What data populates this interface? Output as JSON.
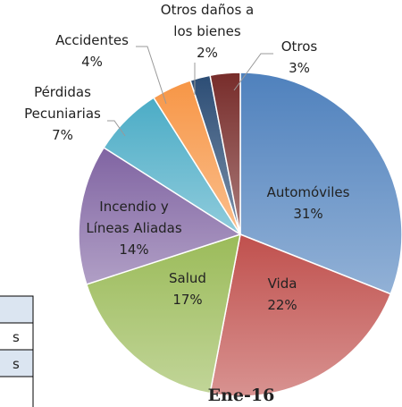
{
  "chart_data": {
    "type": "pie",
    "title": "Ene-16",
    "categories": [
      "Automóviles",
      "Vida",
      "Salud",
      "Incendio y Líneas Aliadas",
      "Pérdidas Pecuniarias",
      "Accidentes",
      "Otros daños a los bienes",
      "Otros"
    ],
    "values": [
      31,
      22,
      17,
      14,
      7,
      4,
      2,
      3
    ],
    "value_labels": [
      "31%",
      "22%",
      "17%",
      "14%",
      "7%",
      "4%",
      "2%",
      "3%"
    ],
    "colors": [
      "#4f81bd",
      "#c0504d",
      "#9bbb59",
      "#8064a2",
      "#4bacc6",
      "#f79646",
      "#2c4d75",
      "#772c2a"
    ]
  },
  "table_fragment": {
    "rows": [
      "s",
      "s"
    ]
  }
}
